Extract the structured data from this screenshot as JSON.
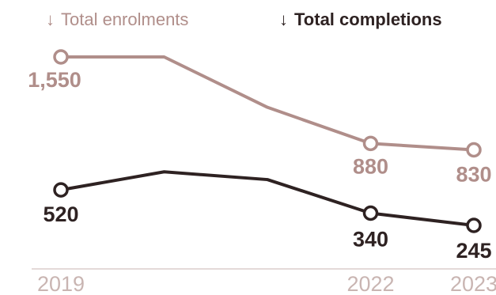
{
  "chart_data": {
    "type": "line",
    "x": [
      2019,
      2020,
      2021,
      2022,
      2023
    ],
    "tick_labels": [
      "2019",
      "",
      "",
      "2022",
      "2023"
    ],
    "series": [
      {
        "name": "Total enrolments",
        "values": [
          1550,
          1550,
          1160,
          880,
          830
        ],
        "labels": [
          "1,550",
          "",
          "",
          "880",
          "830"
        ],
        "color": "#b08e8a"
      },
      {
        "name": "Total completions",
        "values": [
          520,
          660,
          600,
          340,
          245
        ],
        "labels": [
          "520",
          "",
          "",
          "340",
          "245"
        ],
        "color": "#2e2222"
      }
    ],
    "ylim": [
      200,
      1650
    ],
    "grid": false,
    "legend_position": "top",
    "legend_arrow": "↓"
  }
}
